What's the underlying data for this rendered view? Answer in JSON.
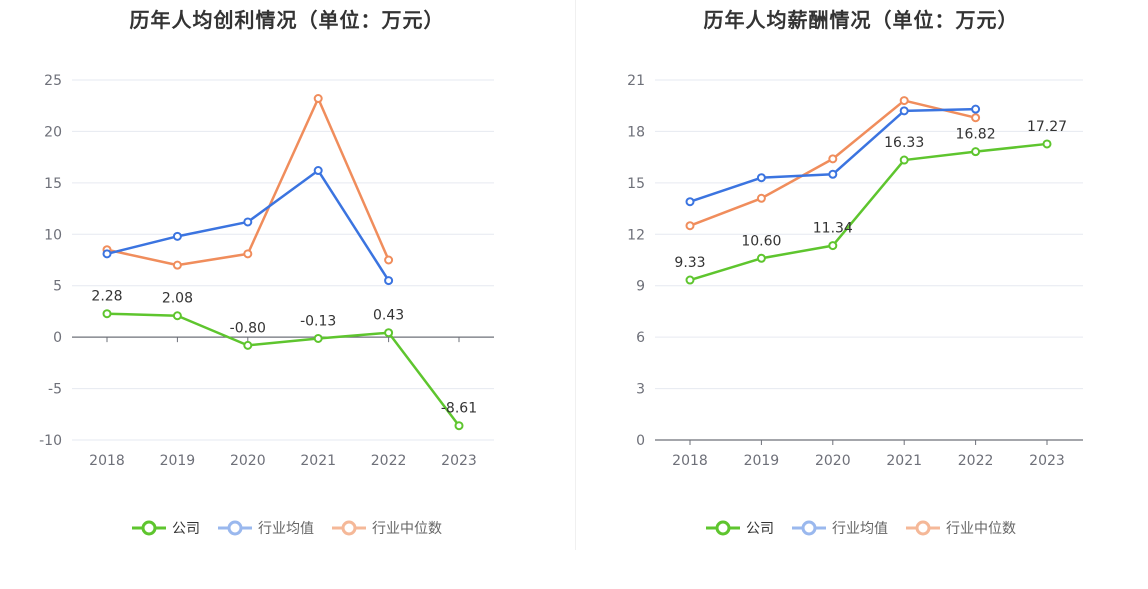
{
  "charts": [
    {
      "id": "left",
      "title": "历年人均创利情况（单位：万元）",
      "legend": [
        {
          "name": "公司",
          "color": "#5ec52e",
          "text_color": "#333333"
        },
        {
          "name": "行业均值",
          "color": "#3b74e0",
          "text_color": "#666666"
        },
        {
          "name": "行业中位数",
          "color": "#f08d5c",
          "text_color": "#666666"
        }
      ]
    },
    {
      "id": "right",
      "title": "历年人均薪酬情况（单位：万元）",
      "legend": [
        {
          "name": "公司",
          "color": "#5ec52e",
          "text_color": "#333333"
        },
        {
          "name": "行业均值",
          "color": "#3b74e0",
          "text_color": "#666666"
        },
        {
          "name": "行业中位数",
          "color": "#f08d5c",
          "text_color": "#666666"
        }
      ]
    }
  ],
  "chart_data": [
    {
      "type": "line",
      "title": "历年人均创利情况（单位：万元）",
      "categories": [
        "2018",
        "2019",
        "2020",
        "2021",
        "2022",
        "2023"
      ],
      "ylim": [
        -10,
        25
      ],
      "yticks": [
        -10,
        -5,
        0,
        5,
        10,
        15,
        20,
        25
      ],
      "grid": true,
      "legend_position": "bottom",
      "series": [
        {
          "name": "公司",
          "color": "#5ec52e",
          "values": [
            2.28,
            2.08,
            -0.8,
            -0.13,
            0.43,
            -8.61
          ],
          "labels": [
            "2.28",
            "2.08",
            "-0.80",
            "-0.13",
            "0.43",
            "-8.61"
          ]
        },
        {
          "name": "行业均值",
          "color": "#3b74e0",
          "values": [
            8.1,
            9.8,
            11.2,
            16.2,
            5.5,
            null
          ]
        },
        {
          "name": "行业中位数",
          "color": "#f08d5c",
          "values": [
            8.5,
            7.0,
            8.1,
            23.2,
            7.5,
            null
          ]
        }
      ]
    },
    {
      "type": "line",
      "title": "历年人均薪酬情况（单位：万元）",
      "categories": [
        "2018",
        "2019",
        "2020",
        "2021",
        "2022",
        "2023"
      ],
      "ylim": [
        0,
        21
      ],
      "yticks": [
        0,
        3,
        6,
        9,
        12,
        15,
        18,
        21
      ],
      "grid": true,
      "legend_position": "bottom",
      "series": [
        {
          "name": "公司",
          "color": "#5ec52e",
          "values": [
            9.33,
            10.6,
            11.34,
            16.33,
            16.82,
            17.27
          ],
          "labels": [
            "9.33",
            "10.60",
            "11.34",
            "16.33",
            "16.82",
            "17.27"
          ]
        },
        {
          "name": "行业均值",
          "color": "#3b74e0",
          "values": [
            13.9,
            15.3,
            15.5,
            19.2,
            19.3,
            null
          ]
        },
        {
          "name": "行业中位数",
          "color": "#f08d5c",
          "values": [
            12.5,
            14.1,
            16.4,
            19.8,
            18.8,
            null
          ]
        }
      ]
    }
  ]
}
